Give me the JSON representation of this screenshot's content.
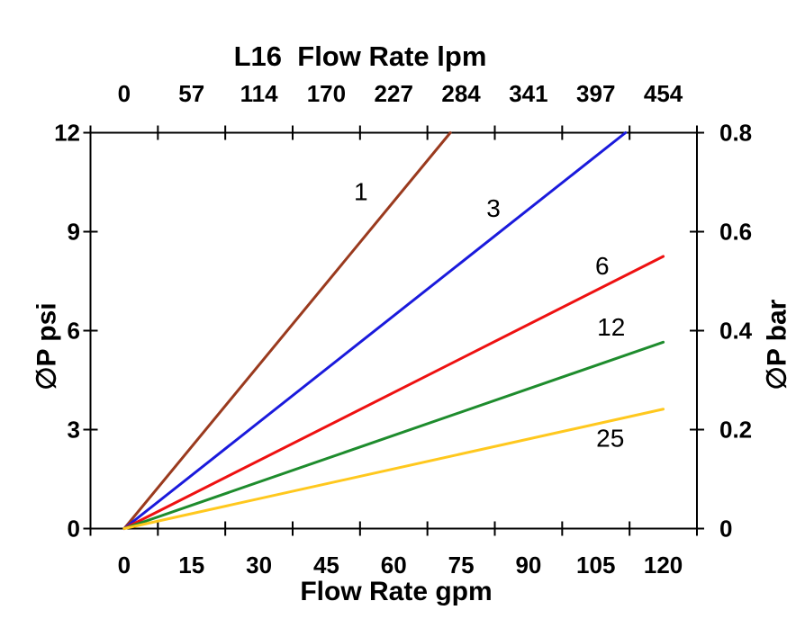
{
  "title": "L16  Flow Rate lpm",
  "axes": {
    "top": {
      "tick_labels": [
        "0",
        "57",
        "114",
        "170",
        "227",
        "284",
        "341",
        "397",
        "454"
      ]
    },
    "bottom": {
      "title": "Flow Rate gpm",
      "tick_labels": [
        "0",
        "15",
        "30",
        "45",
        "60",
        "75",
        "90",
        "105",
        "120"
      ]
    },
    "left": {
      "title": "∅P psi",
      "tick_labels": [
        "0",
        "3",
        "6",
        "9",
        "12"
      ]
    },
    "right": {
      "title": "∅P bar",
      "tick_labels": [
        "0",
        "0.2",
        "0.4",
        "0.6",
        "0.8"
      ]
    }
  },
  "chart_data": {
    "type": "line",
    "title": "L16 Flow Rate lpm",
    "x_bottom": {
      "label": "Flow Rate gpm",
      "ticks": [
        0,
        15,
        30,
        45,
        60,
        75,
        90,
        105,
        120
      ],
      "range": [
        0,
        120
      ]
    },
    "x_top": {
      "label": "L16 Flow Rate lpm",
      "ticks": [
        0,
        57,
        114,
        170,
        227,
        284,
        341,
        397,
        454
      ],
      "range": [
        0,
        454
      ]
    },
    "y_left": {
      "label": "∅P psi",
      "ticks": [
        0,
        3,
        6,
        9,
        12
      ],
      "range": [
        0,
        12
      ]
    },
    "y_right": {
      "label": "∅P bar",
      "ticks": [
        0,
        0.2,
        0.4,
        0.6,
        0.8
      ],
      "range": [
        0,
        0.8
      ]
    },
    "grid": false,
    "legend": "inline-labels-on-curves",
    "series": [
      {
        "name": "1",
        "color": "#9a3a1e",
        "slope_psi_per_gpm": 0.165,
        "points_gpm_psi": [
          [
            0,
            0
          ],
          [
            72.6,
            12
          ]
        ],
        "label_at_gpm_psi": [
          52.7,
          10.2
        ]
      },
      {
        "name": "3",
        "color": "#1a1adc",
        "slope_psi_per_gpm": 0.108,
        "points_gpm_psi": [
          [
            0,
            0
          ],
          [
            111.6,
            12
          ]
        ],
        "label_at_gpm_psi": [
          82.2,
          9.7
        ]
      },
      {
        "name": "6",
        "color": "#ee1111",
        "slope_psi_per_gpm": 0.069,
        "points_gpm_psi": [
          [
            0,
            0
          ],
          [
            120,
            8.25
          ]
        ],
        "label_at_gpm_psi": [
          106.4,
          7.95
        ]
      },
      {
        "name": "12",
        "color": "#1e8c2d",
        "slope_psi_per_gpm": 0.047,
        "points_gpm_psi": [
          [
            0,
            0
          ],
          [
            120,
            5.65
          ]
        ],
        "label_at_gpm_psi": [
          108.4,
          6.1
        ]
      },
      {
        "name": "25",
        "color": "#ffc81e",
        "slope_psi_per_gpm": 0.03,
        "points_gpm_psi": [
          [
            0,
            0
          ],
          [
            120,
            3.62
          ]
        ],
        "label_at_gpm_psi": [
          108.2,
          2.73
        ]
      }
    ]
  },
  "style": {
    "axis_color": "#000000",
    "text_color": "#000000",
    "series_line_width": 3,
    "frame_line_width": 2
  }
}
